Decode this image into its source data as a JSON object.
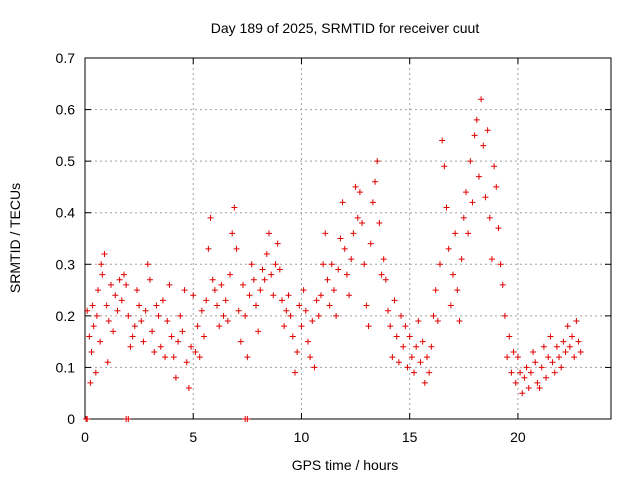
{
  "chart_data": {
    "type": "scatter",
    "title": "Day 189 of 2025, SRMTID for receiver cuut",
    "xlabel": "GPS time / hours",
    "ylabel": "SRMTID / TECUs",
    "xlim": [
      0,
      24.3
    ],
    "ylim": [
      0,
      0.7
    ],
    "xticks": [
      0,
      5,
      10,
      15,
      20
    ],
    "yticks": [
      0,
      0.1,
      0.2,
      0.3,
      0.4,
      0.5,
      0.6,
      0.7
    ],
    "xtick_labels": [
      "0",
      "5",
      "10",
      "15",
      "20"
    ],
    "ytick_labels": [
      "0",
      "0.1",
      "0.2",
      "0.3",
      "0.4",
      "0.5",
      "0.6",
      "0.7"
    ],
    "grid": true,
    "marker": "+",
    "color": "#e00000",
    "series": [
      {
        "name": "SRMTID",
        "points": [
          [
            0.05,
            0.0
          ],
          [
            0.1,
            0.0
          ],
          [
            1.9,
            0.0
          ],
          [
            2.0,
            0.0
          ],
          [
            7.4,
            0.0
          ],
          [
            7.5,
            0.0
          ],
          [
            0.1,
            0.21
          ],
          [
            0.2,
            0.16
          ],
          [
            0.25,
            0.07
          ],
          [
            0.3,
            0.13
          ],
          [
            0.35,
            0.22
          ],
          [
            0.4,
            0.18
          ],
          [
            0.5,
            0.09
          ],
          [
            0.55,
            0.2
          ],
          [
            0.6,
            0.25
          ],
          [
            0.7,
            0.15
          ],
          [
            0.75,
            0.3
          ],
          [
            0.8,
            0.28
          ],
          [
            0.9,
            0.32
          ],
          [
            1.0,
            0.22
          ],
          [
            1.05,
            0.11
          ],
          [
            1.1,
            0.19
          ],
          [
            1.2,
            0.26
          ],
          [
            1.3,
            0.17
          ],
          [
            1.4,
            0.24
          ],
          [
            1.5,
            0.21
          ],
          [
            1.6,
            0.27
          ],
          [
            1.7,
            0.23
          ],
          [
            1.8,
            0.28
          ],
          [
            1.9,
            0.26
          ],
          [
            2.0,
            0.2
          ],
          [
            2.1,
            0.14
          ],
          [
            2.2,
            0.16
          ],
          [
            2.3,
            0.18
          ],
          [
            2.4,
            0.25
          ],
          [
            2.5,
            0.22
          ],
          [
            2.6,
            0.19
          ],
          [
            2.7,
            0.15
          ],
          [
            2.8,
            0.21
          ],
          [
            2.9,
            0.3
          ],
          [
            3.0,
            0.27
          ],
          [
            3.1,
            0.17
          ],
          [
            3.2,
            0.13
          ],
          [
            3.3,
            0.22
          ],
          [
            3.4,
            0.2
          ],
          [
            3.5,
            0.14
          ],
          [
            3.6,
            0.23
          ],
          [
            3.7,
            0.12
          ],
          [
            3.8,
            0.19
          ],
          [
            3.9,
            0.26
          ],
          [
            4.0,
            0.16
          ],
          [
            4.1,
            0.12
          ],
          [
            4.2,
            0.08
          ],
          [
            4.3,
            0.15
          ],
          [
            4.4,
            0.2
          ],
          [
            4.5,
            0.17
          ],
          [
            4.6,
            0.25
          ],
          [
            4.7,
            0.11
          ],
          [
            4.8,
            0.06
          ],
          [
            4.9,
            0.14
          ],
          [
            5.0,
            0.24
          ],
          [
            5.1,
            0.13
          ],
          [
            5.2,
            0.18
          ],
          [
            5.3,
            0.12
          ],
          [
            5.4,
            0.21
          ],
          [
            5.5,
            0.16
          ],
          [
            5.6,
            0.23
          ],
          [
            5.7,
            0.33
          ],
          [
            5.8,
            0.39
          ],
          [
            5.9,
            0.27
          ],
          [
            6.0,
            0.25
          ],
          [
            6.1,
            0.22
          ],
          [
            6.2,
            0.18
          ],
          [
            6.3,
            0.26
          ],
          [
            6.4,
            0.2
          ],
          [
            6.5,
            0.23
          ],
          [
            6.6,
            0.19
          ],
          [
            6.7,
            0.28
          ],
          [
            6.8,
            0.36
          ],
          [
            6.9,
            0.41
          ],
          [
            7.0,
            0.33
          ],
          [
            7.1,
            0.21
          ],
          [
            7.2,
            0.15
          ],
          [
            7.3,
            0.26
          ],
          [
            7.4,
            0.2
          ],
          [
            7.5,
            0.12
          ],
          [
            7.6,
            0.24
          ],
          [
            7.7,
            0.3
          ],
          [
            7.8,
            0.27
          ],
          [
            7.9,
            0.22
          ],
          [
            8.0,
            0.17
          ],
          [
            8.1,
            0.25
          ],
          [
            8.2,
            0.29
          ],
          [
            8.3,
            0.27
          ],
          [
            8.4,
            0.32
          ],
          [
            8.5,
            0.36
          ],
          [
            8.6,
            0.28
          ],
          [
            8.7,
            0.24
          ],
          [
            8.8,
            0.3
          ],
          [
            8.9,
            0.34
          ],
          [
            9.0,
            0.29
          ],
          [
            9.1,
            0.23
          ],
          [
            9.2,
            0.18
          ],
          [
            9.3,
            0.21
          ],
          [
            9.4,
            0.24
          ],
          [
            9.5,
            0.2
          ],
          [
            9.6,
            0.16
          ],
          [
            9.7,
            0.09
          ],
          [
            9.8,
            0.13
          ],
          [
            9.9,
            0.22
          ],
          [
            10.0,
            0.18
          ],
          [
            10.1,
            0.25
          ],
          [
            10.2,
            0.21
          ],
          [
            10.3,
            0.15
          ],
          [
            10.4,
            0.12
          ],
          [
            10.5,
            0.19
          ],
          [
            10.6,
            0.1
          ],
          [
            10.7,
            0.23
          ],
          [
            10.8,
            0.2
          ],
          [
            10.9,
            0.24
          ],
          [
            11.0,
            0.3
          ],
          [
            11.1,
            0.36
          ],
          [
            11.2,
            0.27
          ],
          [
            11.3,
            0.22
          ],
          [
            11.4,
            0.3
          ],
          [
            11.5,
            0.25
          ],
          [
            11.6,
            0.2
          ],
          [
            11.7,
            0.29
          ],
          [
            11.8,
            0.35
          ],
          [
            11.9,
            0.42
          ],
          [
            12.0,
            0.33
          ],
          [
            12.1,
            0.28
          ],
          [
            12.2,
            0.24
          ],
          [
            12.3,
            0.31
          ],
          [
            12.4,
            0.36
          ],
          [
            12.5,
            0.45
          ],
          [
            12.6,
            0.39
          ],
          [
            12.7,
            0.44
          ],
          [
            12.8,
            0.38
          ],
          [
            12.9,
            0.3
          ],
          [
            13.0,
            0.22
          ],
          [
            13.1,
            0.18
          ],
          [
            13.2,
            0.34
          ],
          [
            13.3,
            0.42
          ],
          [
            13.4,
            0.46
          ],
          [
            13.5,
            0.5
          ],
          [
            13.6,
            0.38
          ],
          [
            13.7,
            0.28
          ],
          [
            13.8,
            0.31
          ],
          [
            13.9,
            0.27
          ],
          [
            14.0,
            0.21
          ],
          [
            14.1,
            0.18
          ],
          [
            14.2,
            0.12
          ],
          [
            14.3,
            0.23
          ],
          [
            14.4,
            0.16
          ],
          [
            14.5,
            0.11
          ],
          [
            14.6,
            0.2
          ],
          [
            14.7,
            0.14
          ],
          [
            14.8,
            0.18
          ],
          [
            14.9,
            0.1
          ],
          [
            15.0,
            0.16
          ],
          [
            15.1,
            0.12
          ],
          [
            15.2,
            0.09
          ],
          [
            15.3,
            0.14
          ],
          [
            15.4,
            0.19
          ],
          [
            15.5,
            0.11
          ],
          [
            15.6,
            0.15
          ],
          [
            15.7,
            0.07
          ],
          [
            15.8,
            0.12
          ],
          [
            15.9,
            0.09
          ],
          [
            16.0,
            0.14
          ],
          [
            16.1,
            0.2
          ],
          [
            16.2,
            0.25
          ],
          [
            16.3,
            0.19
          ],
          [
            16.4,
            0.3
          ],
          [
            16.5,
            0.54
          ],
          [
            16.6,
            0.49
          ],
          [
            16.7,
            0.41
          ],
          [
            16.8,
            0.33
          ],
          [
            16.9,
            0.22
          ],
          [
            17.0,
            0.28
          ],
          [
            17.1,
            0.36
          ],
          [
            17.2,
            0.25
          ],
          [
            17.3,
            0.19
          ],
          [
            17.4,
            0.31
          ],
          [
            17.5,
            0.39
          ],
          [
            17.6,
            0.44
          ],
          [
            17.7,
            0.36
          ],
          [
            17.8,
            0.5
          ],
          [
            17.9,
            0.42
          ],
          [
            18.0,
            0.55
          ],
          [
            18.1,
            0.58
          ],
          [
            18.2,
            0.47
          ],
          [
            18.3,
            0.62
          ],
          [
            18.4,
            0.53
          ],
          [
            18.5,
            0.43
          ],
          [
            18.6,
            0.56
          ],
          [
            18.7,
            0.39
          ],
          [
            18.8,
            0.31
          ],
          [
            18.9,
            0.49
          ],
          [
            19.0,
            0.45
          ],
          [
            19.1,
            0.37
          ],
          [
            19.2,
            0.3
          ],
          [
            19.3,
            0.26
          ],
          [
            19.4,
            0.2
          ],
          [
            19.5,
            0.12
          ],
          [
            19.6,
            0.16
          ],
          [
            19.7,
            0.09
          ],
          [
            19.8,
            0.13
          ],
          [
            19.9,
            0.07
          ],
          [
            20.0,
            0.12
          ],
          [
            20.1,
            0.09
          ],
          [
            20.2,
            0.05
          ],
          [
            20.3,
            0.08
          ],
          [
            20.4,
            0.1
          ],
          [
            20.5,
            0.06
          ],
          [
            20.6,
            0.09
          ],
          [
            20.7,
            0.13
          ],
          [
            20.8,
            0.11
          ],
          [
            20.9,
            0.07
          ],
          [
            21.0,
            0.06
          ],
          [
            21.1,
            0.1
          ],
          [
            21.2,
            0.14
          ],
          [
            21.3,
            0.08
          ],
          [
            21.4,
            0.12
          ],
          [
            21.5,
            0.16
          ],
          [
            21.6,
            0.11
          ],
          [
            21.7,
            0.09
          ],
          [
            21.8,
            0.14
          ],
          [
            21.9,
            0.12
          ],
          [
            22.0,
            0.1
          ],
          [
            22.1,
            0.15
          ],
          [
            22.2,
            0.13
          ],
          [
            22.3,
            0.18
          ],
          [
            22.4,
            0.14
          ],
          [
            22.5,
            0.16
          ],
          [
            22.6,
            0.12
          ],
          [
            22.7,
            0.19
          ],
          [
            22.8,
            0.15
          ],
          [
            22.9,
            0.13
          ]
        ]
      }
    ]
  }
}
